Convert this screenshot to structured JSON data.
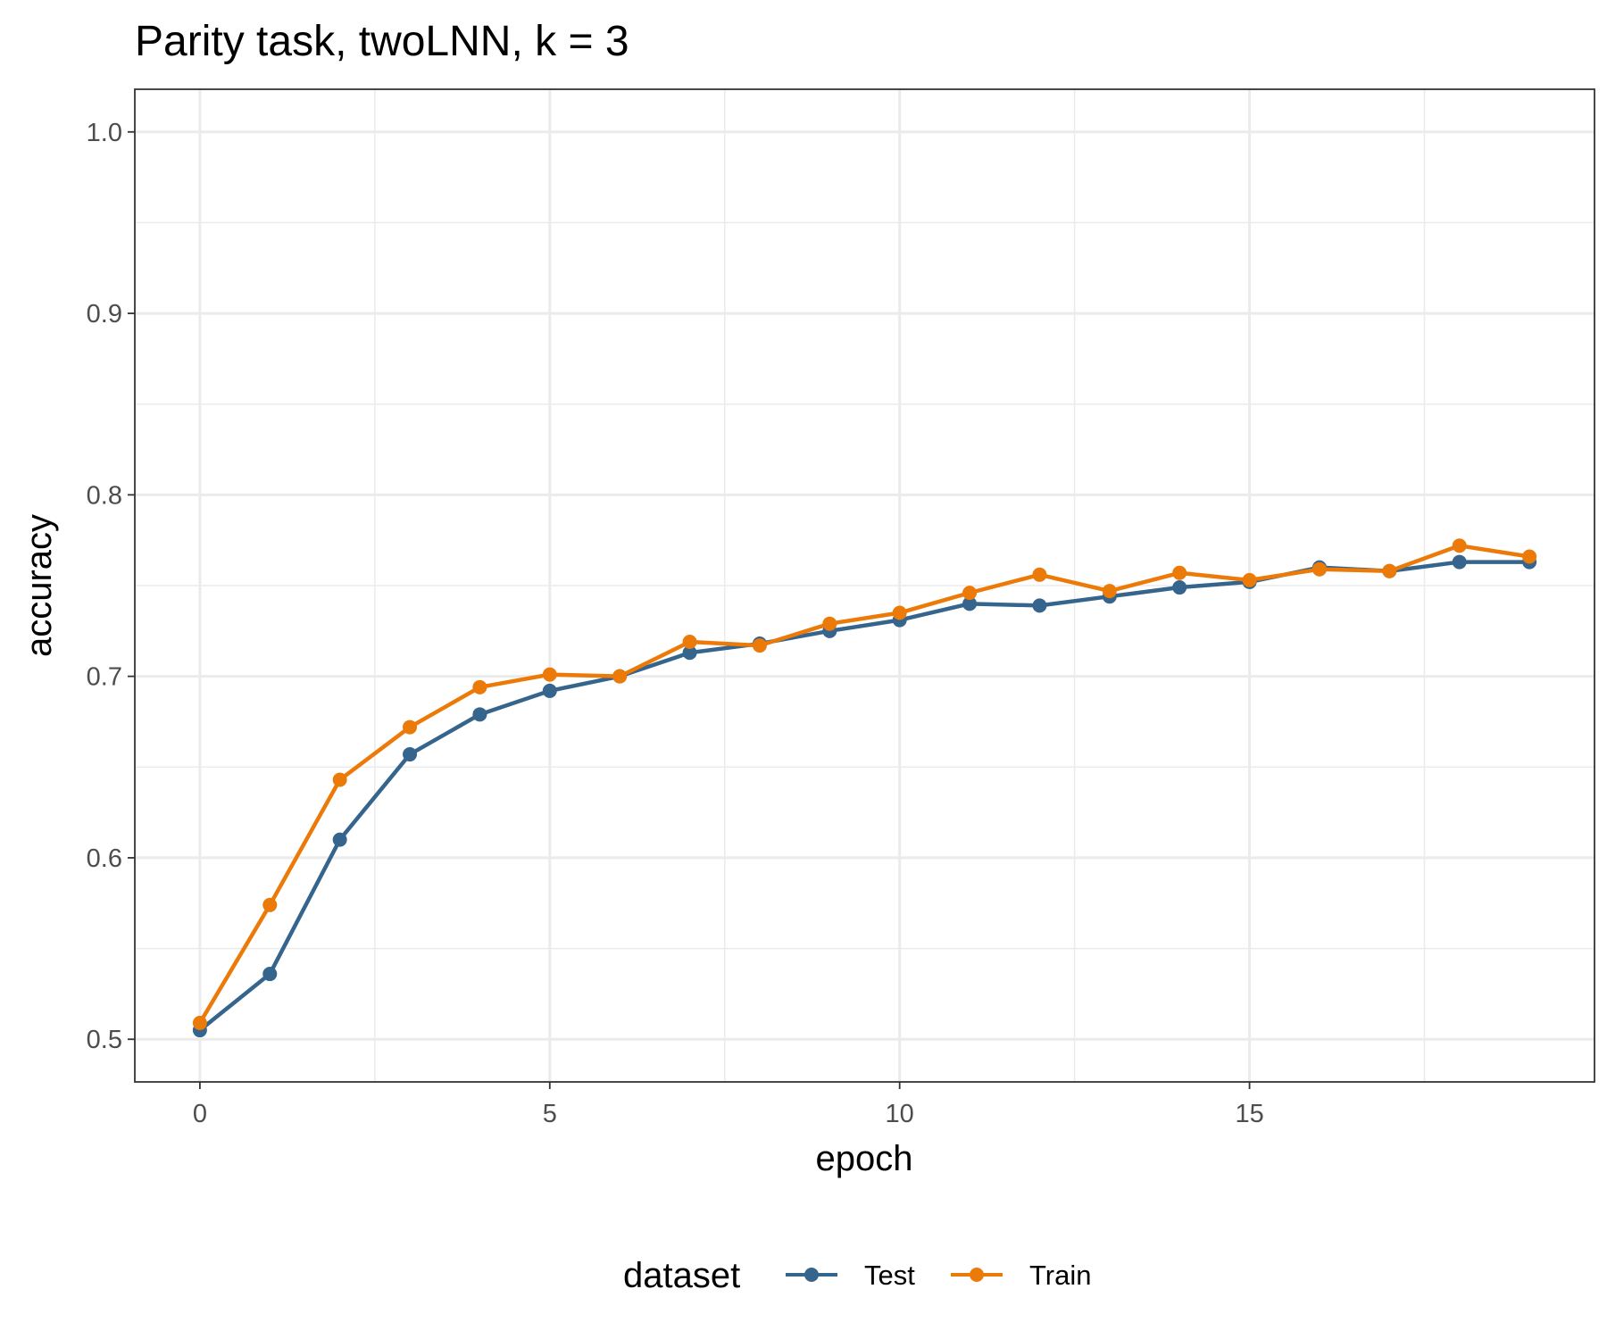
{
  "chart_data": {
    "type": "line",
    "title": "Parity task, twoLNN, k = 3",
    "xlabel": "epoch",
    "ylabel": "accuracy",
    "xlim": [
      -0.93,
      19.93
    ],
    "ylim": [
      0.4765,
      1.0235
    ],
    "x_ticks": [
      0,
      5,
      10,
      15
    ],
    "y_ticks": [
      0.5,
      0.6,
      0.7,
      0.8,
      0.9,
      1.0
    ],
    "x_tick_labels": [
      "0",
      "5",
      "10",
      "15"
    ],
    "y_tick_labels": [
      "0.5",
      "0.6",
      "0.7",
      "0.8",
      "0.9",
      "1.0"
    ],
    "grid": true,
    "legend": {
      "title": "dataset",
      "position": "bottom"
    },
    "x": [
      0,
      1,
      2,
      3,
      4,
      5,
      6,
      7,
      8,
      9,
      10,
      11,
      12,
      13,
      14,
      15,
      16,
      17,
      18,
      19
    ],
    "series": [
      {
        "name": "Test",
        "color": "#35648c",
        "values": [
          0.505,
          0.536,
          0.61,
          0.657,
          0.679,
          0.692,
          0.7,
          0.713,
          0.718,
          0.725,
          0.731,
          0.74,
          0.739,
          0.744,
          0.749,
          0.752,
          0.76,
          0.758,
          0.763,
          0.763
        ]
      },
      {
        "name": "Train",
        "color": "#ec7a08",
        "values": [
          0.509,
          0.574,
          0.643,
          0.672,
          0.694,
          0.701,
          0.7,
          0.719,
          0.717,
          0.729,
          0.735,
          0.746,
          0.756,
          0.747,
          0.757,
          0.753,
          0.759,
          0.758,
          0.772,
          0.766
        ]
      }
    ]
  }
}
